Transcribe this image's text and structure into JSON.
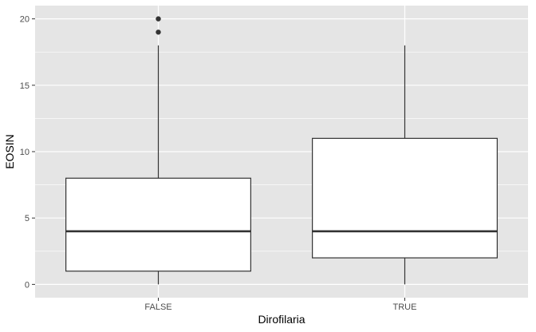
{
  "chart_data": {
    "type": "box",
    "xlabel": "Dirofilaria",
    "ylabel": "EOSIN",
    "categories": [
      "FALSE",
      "TRUE"
    ],
    "ylim": [
      -1,
      21
    ],
    "y_ticks": [
      0,
      5,
      10,
      15,
      20
    ],
    "boxes": [
      {
        "category": "FALSE",
        "whisker_low": 0,
        "q1": 1,
        "median": 4,
        "q3": 8,
        "whisker_high": 18,
        "outliers": [
          19,
          20
        ]
      },
      {
        "category": "TRUE",
        "whisker_low": 0,
        "q1": 2,
        "median": 4,
        "q3": 11,
        "whisker_high": 18,
        "outliers": []
      }
    ],
    "grid": true,
    "legend": "none",
    "colors": {
      "panel": "#e5e5e5",
      "grid": "#ffffff",
      "box_fill": "#ffffff",
      "box_stroke": "#333333",
      "outlier": "#333333"
    }
  }
}
